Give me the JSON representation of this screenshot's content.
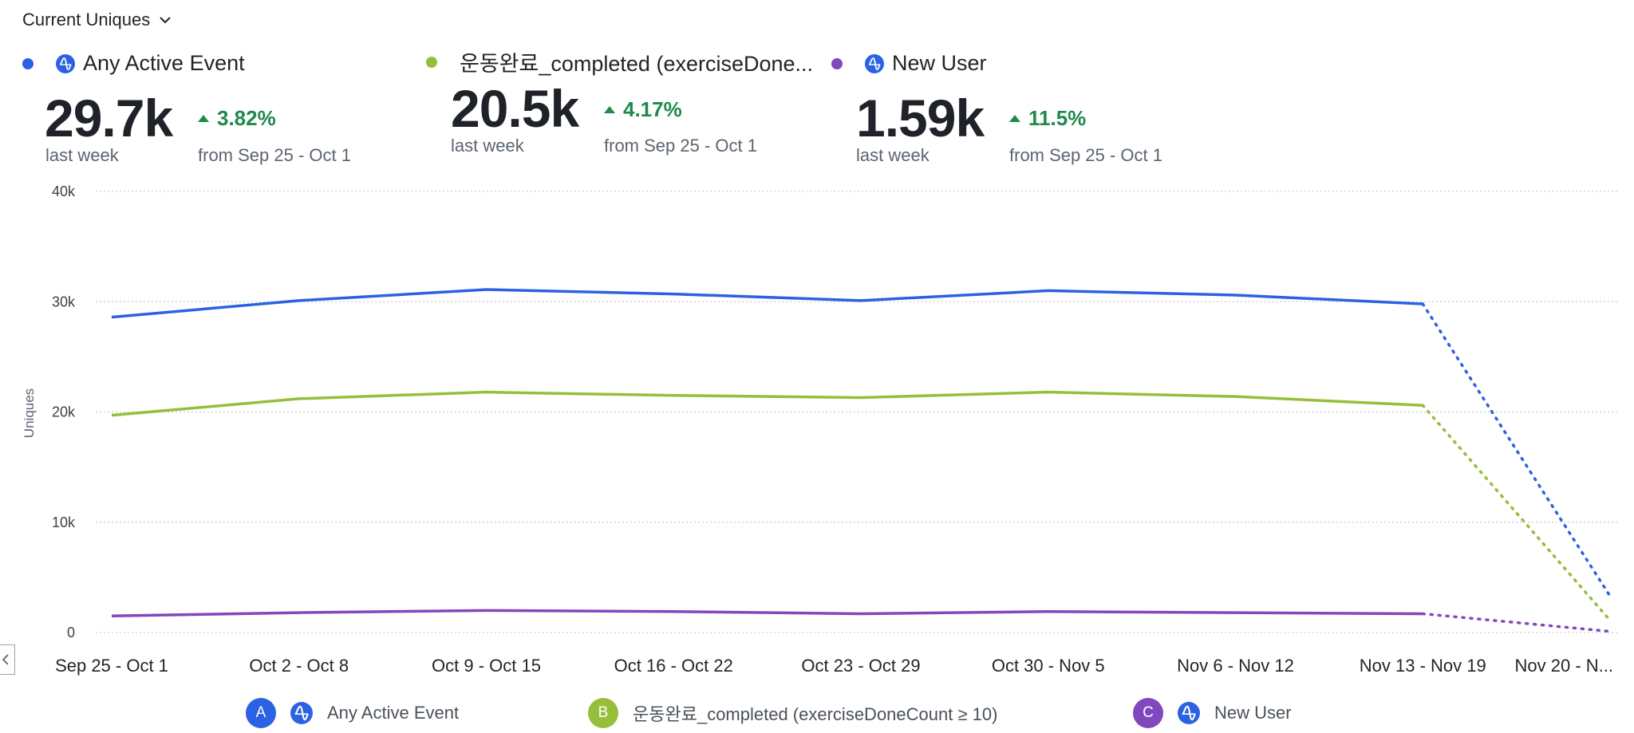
{
  "header": {
    "metric_selector": "Current Uniques"
  },
  "kpis": [
    {
      "name": "Any Active Event",
      "value": "29.7k",
      "period": "last week",
      "change": "3.82%",
      "compare": "from Sep 25 - Oct 1",
      "color": "#2b62e3",
      "has_icon": true
    },
    {
      "name": "운동완료_completed (exerciseDone...",
      "value": "20.5k",
      "period": "last week",
      "change": "4.17%",
      "compare": "from Sep 25 - Oct 1",
      "color": "#97be3a",
      "has_icon": false
    },
    {
      "name": "New User",
      "value": "1.59k",
      "period": "last week",
      "change": "11.5%",
      "compare": "from Sep 25 - Oct 1",
      "color": "#8147bd",
      "has_icon": true
    }
  ],
  "chart_data": {
    "type": "line",
    "ylabel": "Uniques",
    "ylim": [
      0,
      40000
    ],
    "yticks": [
      0,
      10000,
      20000,
      30000,
      40000
    ],
    "ytick_labels": [
      "0",
      "10k",
      "20k",
      "30k",
      "40k"
    ],
    "categories": [
      "Sep 25 - Oct 1",
      "Oct 2 - Oct 8",
      "Oct 9 - Oct 15",
      "Oct 16 - Oct 22",
      "Oct 23 - Oct 29",
      "Oct 30 - Nov 5",
      "Nov 6 - Nov 12",
      "Nov 13 - Nov 19",
      "Nov 20 - N..."
    ],
    "incomplete_last_period": true,
    "grid": true,
    "series": [
      {
        "name": "Any Active Event",
        "color": "#2b62e3",
        "values": [
          28600,
          30100,
          31100,
          30700,
          30100,
          31000,
          30600,
          29800,
          3300
        ]
      },
      {
        "name": "운동완료_completed (exerciseDoneCount ≥ 10)",
        "color": "#97be3a",
        "values": [
          19700,
          21200,
          21800,
          21500,
          21300,
          21800,
          21400,
          20600,
          1100
        ]
      },
      {
        "name": "New User",
        "color": "#8147bd",
        "values": [
          1500,
          1800,
          2000,
          1900,
          1700,
          1900,
          1800,
          1700,
          100
        ]
      }
    ]
  },
  "legend": [
    {
      "letter": "A",
      "label": "Any Active Event",
      "color": "#2b62e3",
      "has_icon": true
    },
    {
      "letter": "B",
      "label": "운동완료_completed (exerciseDoneCount ≥ 10)",
      "color": "#97be3a",
      "has_icon": false
    },
    {
      "letter": "C",
      "label": "New User",
      "color": "#8147bd",
      "has_icon": true
    }
  ]
}
